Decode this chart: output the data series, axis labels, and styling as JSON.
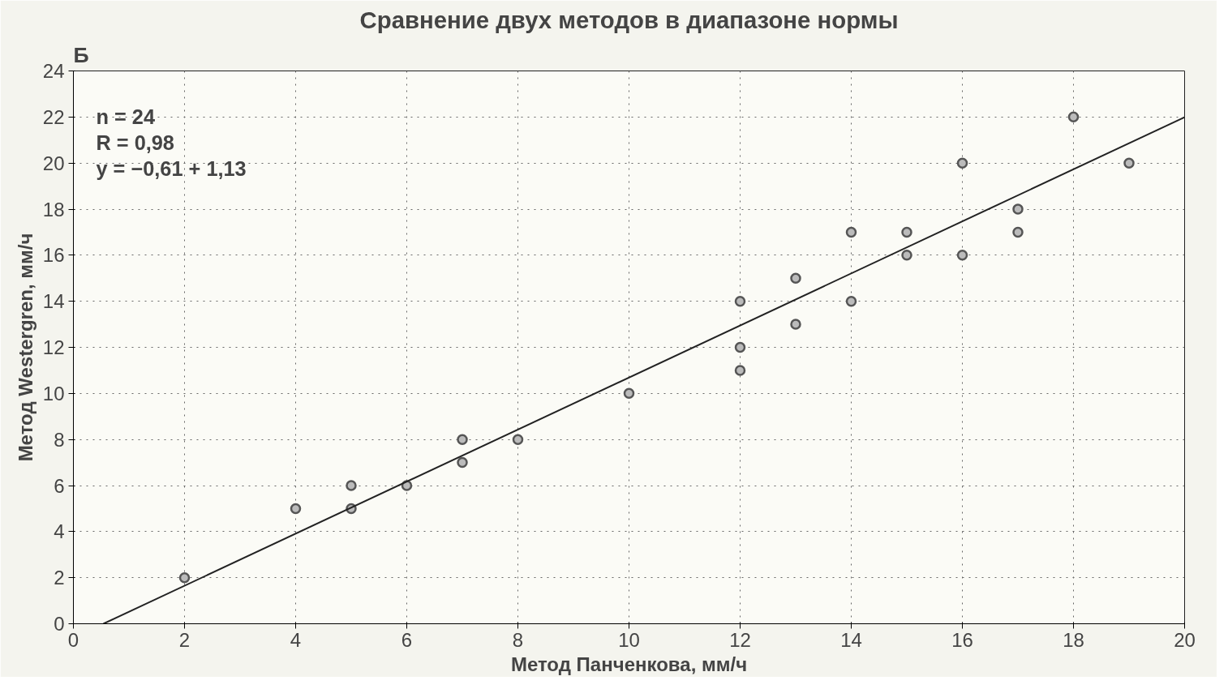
{
  "chart_data": {
    "type": "scatter",
    "title": "Сравнение двух методов в диапазоне нормы",
    "xlabel": "Метод Панченкова, мм/ч",
    "ylabel": "Метод Westergren, мм/ч",
    "annotations": [
      "Б",
      "n = 24",
      "R = 0,98",
      "y = −0,61 + 1,13"
    ],
    "series": [
      {
        "marker": "circle",
        "color": "#555555",
        "x": [
          2,
          4,
          5,
          5,
          6,
          7,
          7,
          8,
          10,
          12,
          12,
          12,
          13,
          13,
          14,
          14,
          15,
          15,
          16,
          16,
          17,
          17,
          18,
          19
        ],
        "values": [
          2,
          5,
          6,
          5,
          6,
          8,
          7,
          8,
          10,
          14,
          12,
          11,
          15,
          13,
          17,
          14,
          17,
          16,
          20,
          16,
          18,
          17,
          22,
          20
        ]
      },
      {
        "type": "line",
        "marker": "none",
        "color": "#222222",
        "x": [
          0.54,
          20
        ],
        "values": [
          0,
          21.99
        ]
      }
    ],
    "xlim": [
      0,
      20
    ],
    "ylim": [
      0,
      24
    ],
    "xticks": [
      0,
      2,
      4,
      6,
      8,
      10,
      12,
      14,
      16,
      18,
      20
    ],
    "yticks": [
      0,
      2,
      4,
      6,
      8,
      10,
      12,
      14,
      16,
      18,
      20,
      22,
      24
    ],
    "grid": true,
    "line_style": "solid"
  }
}
